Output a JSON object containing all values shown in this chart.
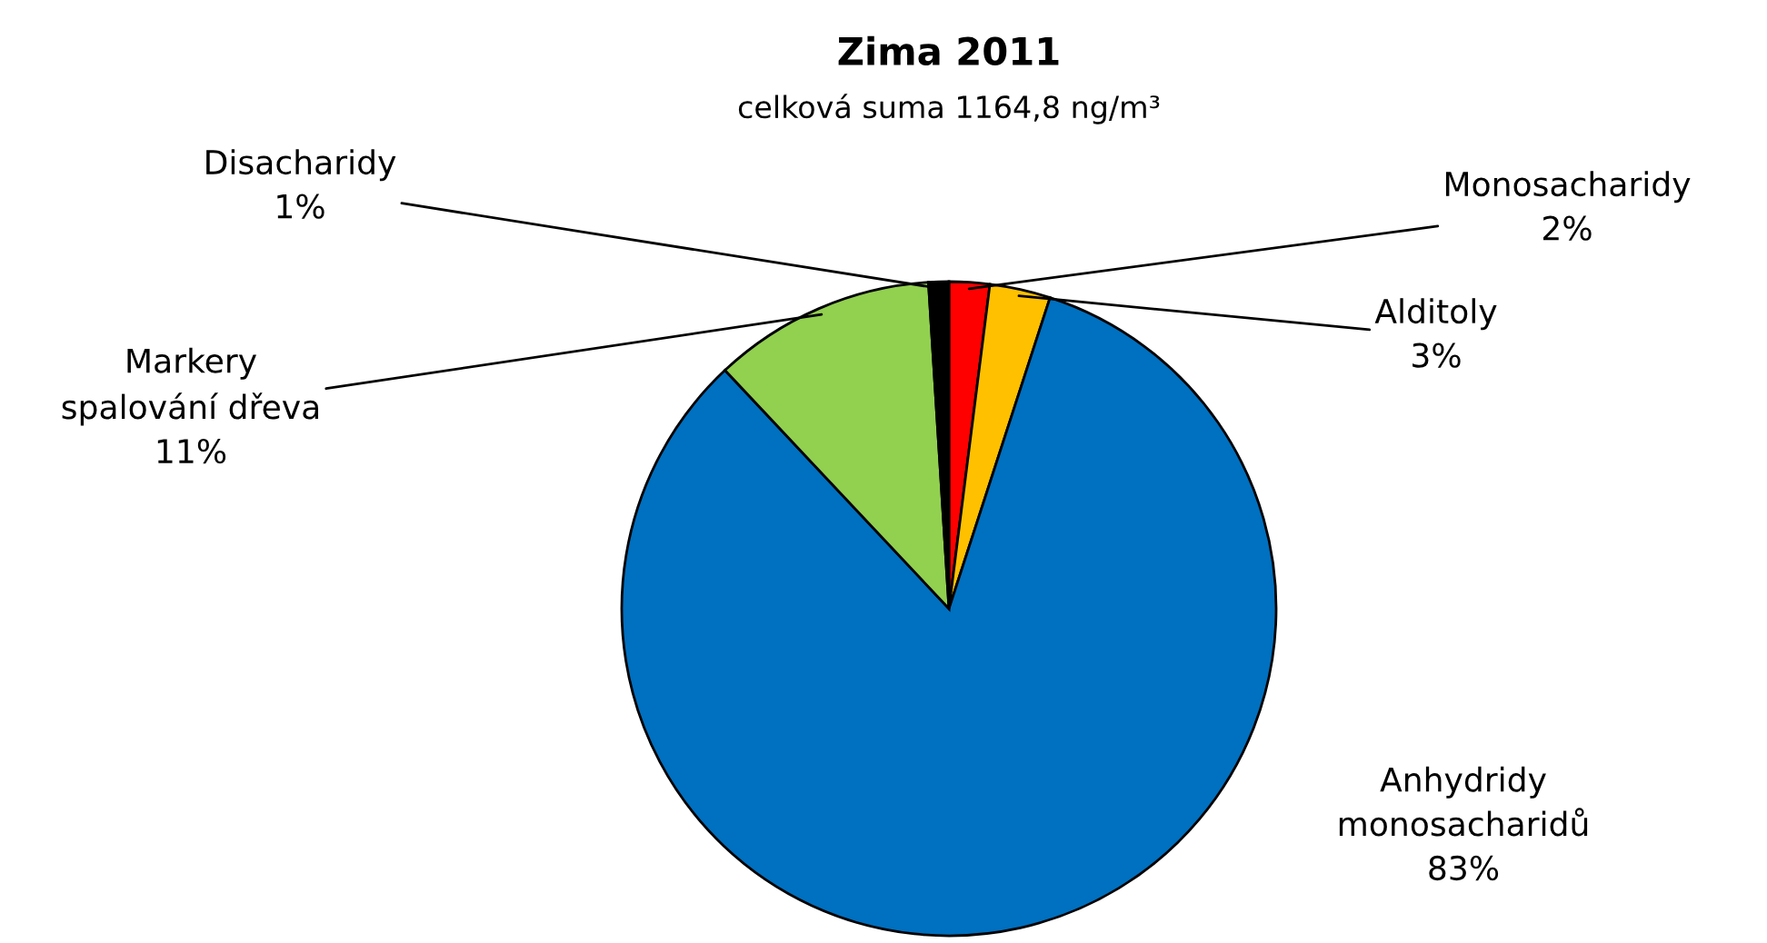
{
  "chart_data": {
    "type": "pie",
    "title": "Zima 2011",
    "subtitle": "celková suma 1164,8 ng/m³",
    "categories": [
      "Monosacharidy",
      "Alditoly",
      "Anhydridy monosacharidů",
      "Markery spalování dřeva",
      "Disacharidy"
    ],
    "values": [
      2,
      3,
      83,
      11,
      1
    ],
    "value_labels": [
      "2%",
      "3%",
      "83%",
      "11%",
      "1%"
    ],
    "colors": [
      "#ff0000",
      "#ffc000",
      "#0070c0",
      "#92d050",
      "#000000"
    ],
    "legend": false
  }
}
